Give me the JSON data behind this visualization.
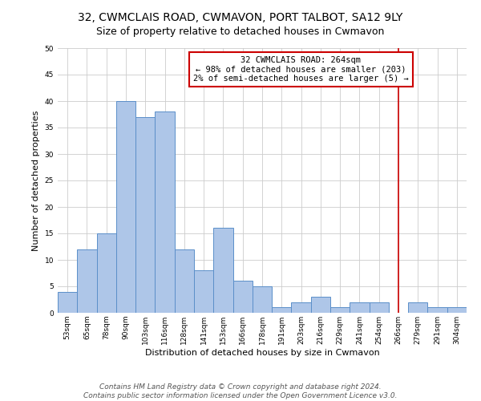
{
  "title": "32, CWMCLAIS ROAD, CWMAVON, PORT TALBOT, SA12 9LY",
  "subtitle": "Size of property relative to detached houses in Cwmavon",
  "xlabel": "Distribution of detached houses by size in Cwmavon",
  "ylabel": "Number of detached properties",
  "categories": [
    "53sqm",
    "65sqm",
    "78sqm",
    "90sqm",
    "103sqm",
    "116sqm",
    "128sqm",
    "141sqm",
    "153sqm",
    "166sqm",
    "178sqm",
    "191sqm",
    "203sqm",
    "216sqm",
    "229sqm",
    "241sqm",
    "254sqm",
    "266sqm",
    "279sqm",
    "291sqm",
    "304sqm"
  ],
  "values": [
    4,
    12,
    15,
    40,
    37,
    38,
    12,
    8,
    16,
    6,
    5,
    1,
    2,
    3,
    1,
    2,
    2,
    0,
    2,
    1,
    1
  ],
  "bar_color": "#aec6e8",
  "bar_edge_color": "#5b8fc9",
  "vline_x_index": 17.0,
  "vline_color": "#cc0000",
  "annotation_text": "32 CWMCLAIS ROAD: 264sqm\n← 98% of detached houses are smaller (203)\n2% of semi-detached houses are larger (5) →",
  "annotation_box_color": "#ffffff",
  "annotation_box_edge_color": "#cc0000",
  "ylim": [
    0,
    50
  ],
  "yticks": [
    0,
    5,
    10,
    15,
    20,
    25,
    30,
    35,
    40,
    45,
    50
  ],
  "footer": "Contains HM Land Registry data © Crown copyright and database right 2024.\nContains public sector information licensed under the Open Government Licence v3.0.",
  "bg_color": "#ffffff",
  "grid_color": "#cccccc",
  "title_fontsize": 10,
  "subtitle_fontsize": 9,
  "axis_label_fontsize": 8,
  "tick_fontsize": 6.5,
  "footer_fontsize": 6.5,
  "annot_fontsize": 7.5
}
